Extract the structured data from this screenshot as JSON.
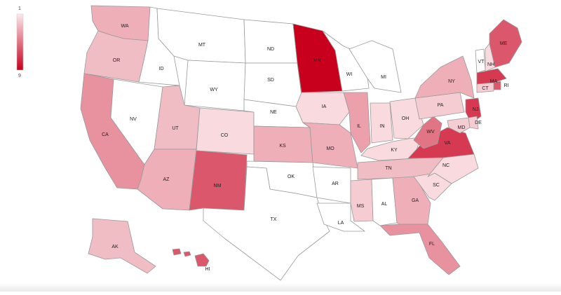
{
  "legend": {
    "min_label": "1",
    "max_label": "9",
    "min": 1,
    "max": 9,
    "color_low": "#fbe9ec",
    "color_high": "#c8001e"
  },
  "states": [
    {
      "code": "WA",
      "value": 3
    },
    {
      "code": "OR",
      "value": 2.5
    },
    {
      "code": "CA",
      "value": 4
    },
    {
      "code": "ID",
      "value": 0
    },
    {
      "code": "NV",
      "value": 0
    },
    {
      "code": "MT",
      "value": 0
    },
    {
      "code": "WY",
      "value": 0
    },
    {
      "code": "UT",
      "value": 2.5
    },
    {
      "code": "AZ",
      "value": 3
    },
    {
      "code": "CO",
      "value": 1.5
    },
    {
      "code": "NM",
      "value": 6
    },
    {
      "code": "ND",
      "value": 0
    },
    {
      "code": "SD",
      "value": 0
    },
    {
      "code": "NE",
      "value": 0
    },
    {
      "code": "KS",
      "value": 3
    },
    {
      "code": "OK",
      "value": 0
    },
    {
      "code": "TX",
      "value": 0
    },
    {
      "code": "MN",
      "value": 9
    },
    {
      "code": "IA",
      "value": 1.5
    },
    {
      "code": "MO",
      "value": 3
    },
    {
      "code": "AR",
      "value": 0
    },
    {
      "code": "LA",
      "value": 0
    },
    {
      "code": "WI",
      "value": 0
    },
    {
      "code": "IL",
      "value": 3.5
    },
    {
      "code": "MI",
      "value": 0
    },
    {
      "code": "IN",
      "value": 1.5
    },
    {
      "code": "OH",
      "value": 1.5
    },
    {
      "code": "KY",
      "value": 1.5
    },
    {
      "code": "TN",
      "value": 2.5
    },
    {
      "code": "MS",
      "value": 2
    },
    {
      "code": "AL",
      "value": 0
    },
    {
      "code": "GA",
      "value": 3
    },
    {
      "code": "FL",
      "value": 4
    },
    {
      "code": "SC",
      "value": 1.5
    },
    {
      "code": "NC",
      "value": 1.5
    },
    {
      "code": "VA",
      "value": 7
    },
    {
      "code": "WV",
      "value": 5
    },
    {
      "code": "PA",
      "value": 2
    },
    {
      "code": "NY",
      "value": 3
    },
    {
      "code": "VT",
      "value": 0
    },
    {
      "code": "NH",
      "value": 1.5
    },
    {
      "code": "ME",
      "value": 6
    },
    {
      "code": "MA",
      "value": 7
    },
    {
      "code": "RI",
      "value": 6
    },
    {
      "code": "CT",
      "value": 2
    },
    {
      "code": "NJ",
      "value": 7
    },
    {
      "code": "DE",
      "value": 2
    },
    {
      "code": "MD",
      "value": 2
    },
    {
      "code": "AK",
      "value": 2.5
    },
    {
      "code": "HI",
      "value": 6
    }
  ]
}
